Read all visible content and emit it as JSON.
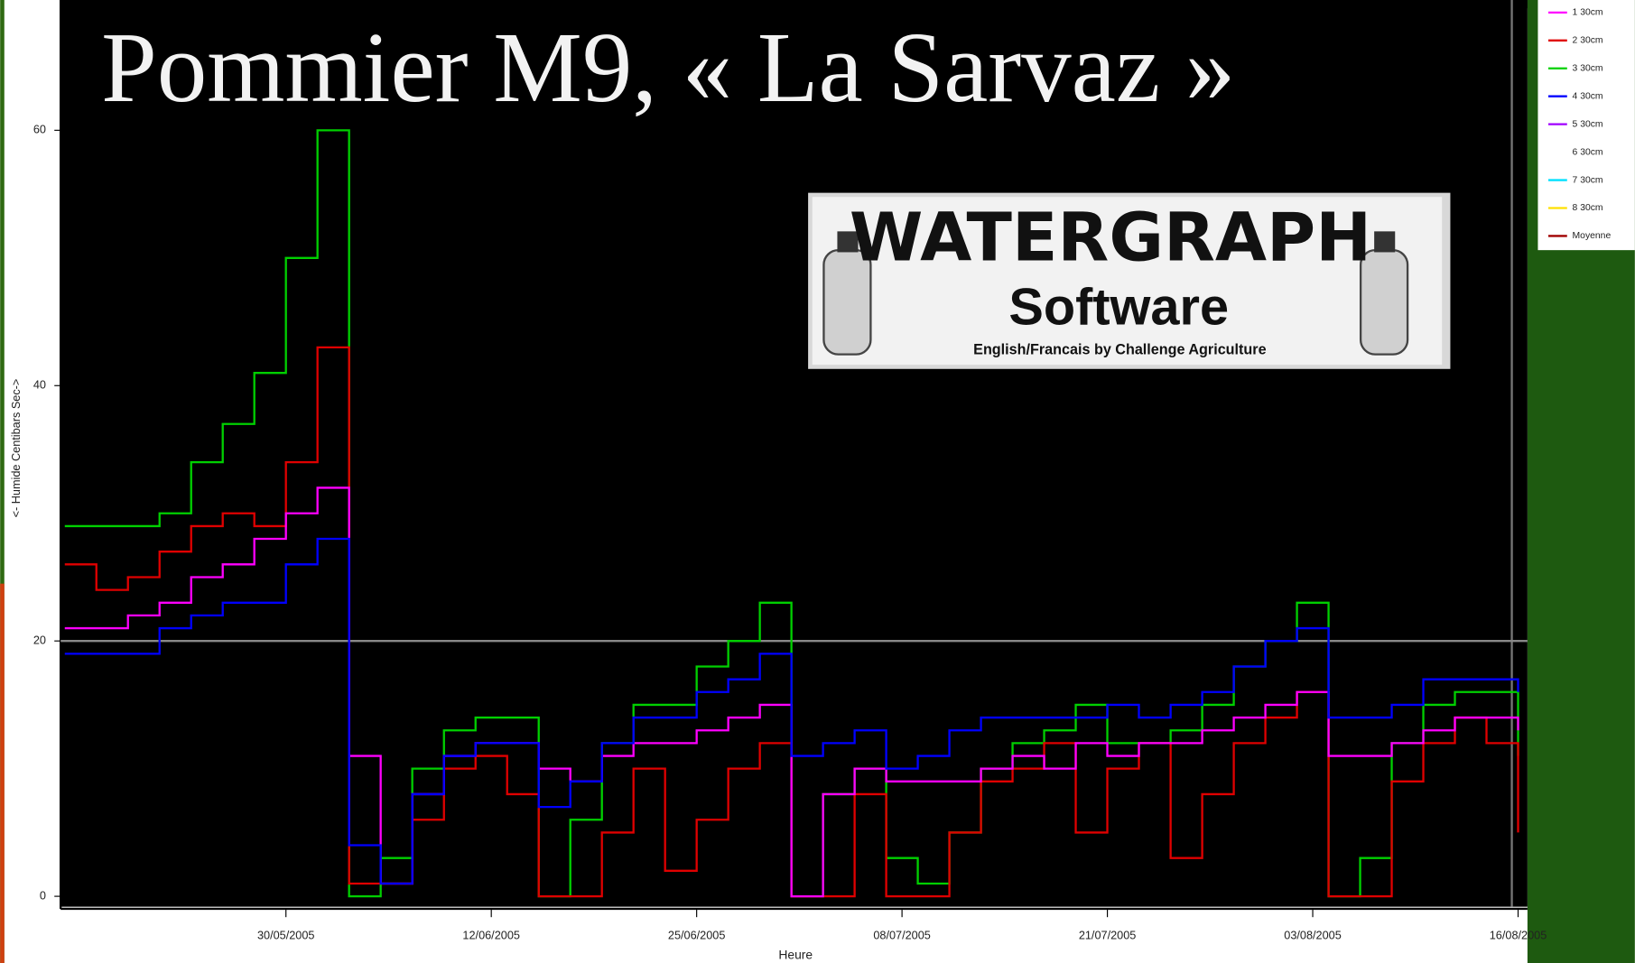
{
  "chart_data": {
    "type": "line",
    "title": "Pommier M9, « La Sarvaz »",
    "y_label": "<- Humide  Centibars  Sec->",
    "x_label": "Heure",
    "logo": {
      "brand": "WATERGRAPH",
      "product": "Software",
      "credit": "English/Francais by Challenge Agriculture"
    },
    "x": [
      "2005-05-16",
      "2005-05-18",
      "2005-05-20",
      "2005-05-22",
      "2005-05-24",
      "2005-05-26",
      "2005-05-28",
      "2005-05-30",
      "2005-06-01",
      "2005-06-03",
      "2005-06-05",
      "2005-06-07",
      "2005-06-09",
      "2005-06-11",
      "2005-06-13",
      "2005-06-15",
      "2005-06-17",
      "2005-06-19",
      "2005-06-21",
      "2005-06-23",
      "2005-06-25",
      "2005-06-27",
      "2005-06-29",
      "2005-07-01",
      "2005-07-03",
      "2005-07-05",
      "2005-07-07",
      "2005-07-09",
      "2005-07-11",
      "2005-07-13",
      "2005-07-15",
      "2005-07-17",
      "2005-07-19",
      "2005-07-21",
      "2005-07-23",
      "2005-07-25",
      "2005-07-27",
      "2005-07-29",
      "2005-07-31",
      "2005-08-02",
      "2005-08-04",
      "2005-08-06",
      "2005-08-08",
      "2005-08-10",
      "2005-08-12",
      "2005-08-14",
      "2005-08-16"
    ],
    "series": [
      {
        "color": "#00d000",
        "values": [
          29,
          29,
          29,
          30,
          34,
          37,
          41,
          50,
          60,
          0,
          3,
          10,
          13,
          14,
          14,
          0,
          6,
          12,
          15,
          15,
          18,
          20,
          23,
          0,
          8,
          10,
          3,
          1,
          5,
          10,
          12,
          13,
          15,
          12,
          12,
          13,
          15,
          18,
          20,
          23,
          0,
          3,
          12,
          15,
          16,
          16,
          11
        ]
      },
      {
        "color": "#e00000",
        "values": [
          26,
          24,
          25,
          27,
          29,
          30,
          29,
          34,
          43,
          1,
          1,
          6,
          10,
          11,
          8,
          0,
          0,
          5,
          10,
          2,
          6,
          10,
          12,
          0,
          0,
          8,
          0,
          0,
          5,
          9,
          10,
          12,
          5,
          10,
          12,
          3,
          8,
          12,
          14,
          16,
          0,
          0,
          9,
          12,
          14,
          12,
          5
        ]
      },
      {
        "color": "#ff00ff",
        "values": [
          21,
          21,
          22,
          23,
          25,
          26,
          28,
          30,
          32,
          11,
          1,
          8,
          11,
          12,
          12,
          10,
          9,
          11,
          12,
          12,
          13,
          14,
          15,
          0,
          8,
          10,
          9,
          9,
          9,
          10,
          11,
          10,
          12,
          11,
          12,
          12,
          13,
          14,
          15,
          16,
          11,
          11,
          12,
          13,
          14,
          14,
          13
        ]
      },
      {
        "color": "#0000ff",
        "values": [
          19,
          19,
          19,
          21,
          22,
          23,
          23,
          26,
          28,
          4,
          1,
          8,
          11,
          12,
          12,
          7,
          9,
          12,
          14,
          14,
          16,
          17,
          19,
          11,
          12,
          13,
          10,
          11,
          13,
          14,
          14,
          14,
          14,
          15,
          14,
          15,
          16,
          18,
          20,
          21,
          14,
          14,
          15,
          17,
          17,
          17,
          16
        ]
      }
    ],
    "legend": [
      {
        "name": "1 30cm",
        "color": "#ff00ff"
      },
      {
        "name": "2 30cm",
        "color": "#e00000"
      },
      {
        "name": "3 30cm",
        "color": "#00d000"
      },
      {
        "name": "4 30cm",
        "color": "#0000ff"
      },
      {
        "name": "5 30cm",
        "color": "#a000ff"
      },
      {
        "name": "6 30cm",
        "color": "#ffffff"
      },
      {
        "name": "7 30cm",
        "color": "#00e0ff"
      },
      {
        "name": "8 30cm",
        "color": "#ffe000"
      },
      {
        "name": "Moyenne",
        "color": "#a00000"
      }
    ],
    "xlim": [
      "2005-05-16",
      "2005-08-16"
    ],
    "xticks": [
      {
        "value": "2005-05-30",
        "label": "30/05/2005"
      },
      {
        "value": "2005-06-12",
        "label": "12/06/2005"
      },
      {
        "value": "2005-06-25",
        "label": "25/06/2005"
      },
      {
        "value": "2005-07-08",
        "label": "08/07/2005"
      },
      {
        "value": "2005-07-21",
        "label": "21/07/2005"
      },
      {
        "value": "2005-08-03",
        "label": "03/08/2005"
      },
      {
        "value": "2005-08-16",
        "label": "16/08/2005"
      }
    ],
    "ylim": [
      0,
      70
    ],
    "yticks": [
      0,
      20,
      40,
      60
    ],
    "reference_line": 20
  }
}
